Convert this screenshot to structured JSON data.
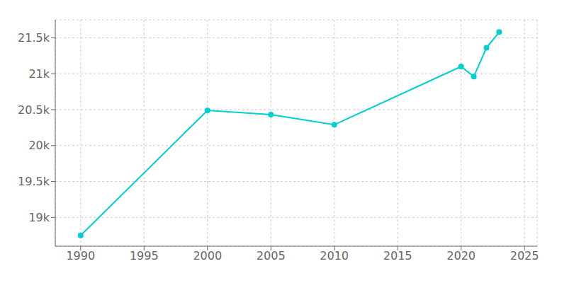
{
  "chart_data": {
    "type": "line",
    "x": [
      1990,
      2000,
      2005,
      2010,
      2020,
      2021,
      2022,
      2023
    ],
    "values": [
      18750,
      20490,
      20430,
      20290,
      21100,
      20960,
      21360,
      21580
    ],
    "color": "#00CED1",
    "marker": "circle",
    "xlim": [
      1988,
      2026
    ],
    "ylim": [
      18600,
      21750
    ],
    "xticks": [
      1990,
      1995,
      2000,
      2005,
      2010,
      2015,
      2020,
      2025
    ],
    "yticks": [
      {
        "value": 19000,
        "label": "19k"
      },
      {
        "value": 19500,
        "label": "19.5k"
      },
      {
        "value": 20000,
        "label": "20k"
      },
      {
        "value": 20500,
        "label": "20.5k"
      },
      {
        "value": 21000,
        "label": "21k"
      },
      {
        "value": 21500,
        "label": "21.5k"
      }
    ],
    "grid": true
  }
}
